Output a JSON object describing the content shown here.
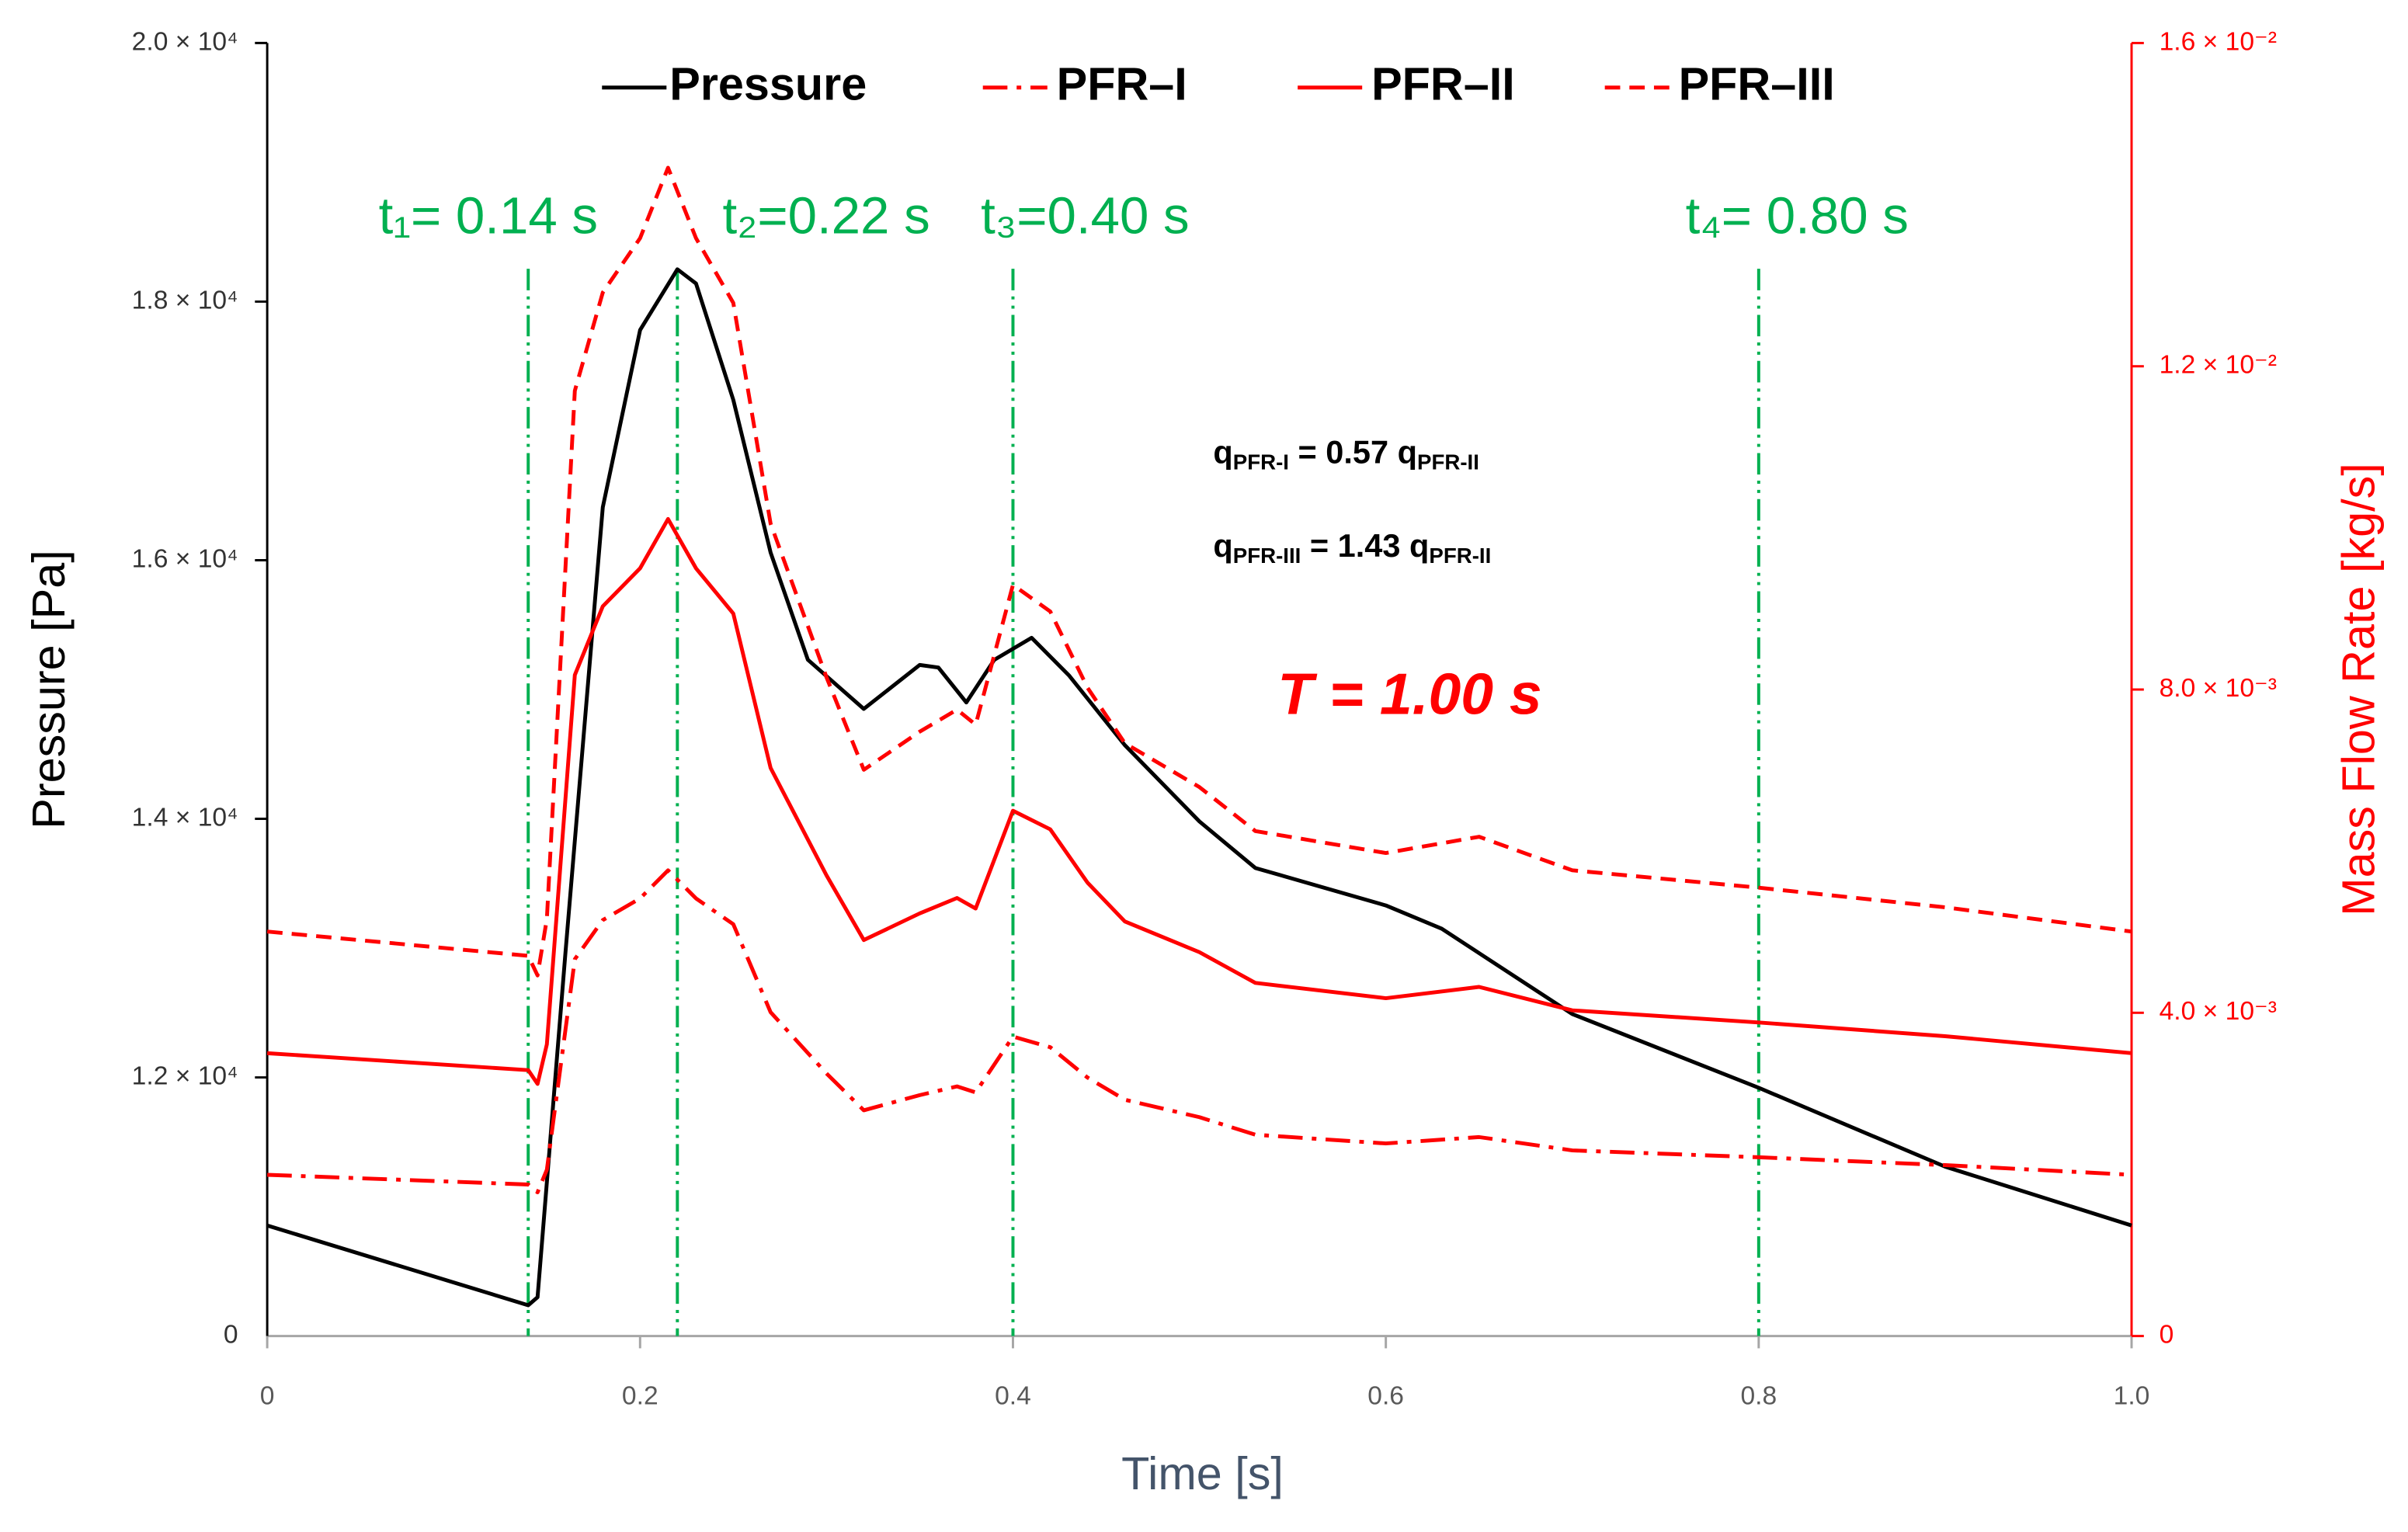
{
  "chart_data": {
    "type": "line",
    "xlabel": "Time [s]",
    "ylabel": "Pressure [Pa]",
    "y2label": "Mass Flow Rate [kg/s]",
    "xlim": [
      0,
      1
    ],
    "xticks": [
      0,
      0.2,
      0.4,
      0.6,
      0.8,
      {
        "value": 1,
        "label": "1.0"
      }
    ],
    "ylim": [
      10000,
      20000
    ],
    "y_origin_label": "0",
    "yticks": [
      {
        "value": 12000,
        "label": "1.2 × 10⁴"
      },
      {
        "value": 14000,
        "label": "1.4 × 10⁴"
      },
      {
        "value": 16000,
        "label": "1.6 × 10⁴"
      },
      {
        "value": 18000,
        "label": "1.8 × 10⁴"
      },
      {
        "value": 20000,
        "label": "2.0 × 10⁴"
      }
    ],
    "y2lim": [
      0,
      0.016
    ],
    "y2ticks": [
      0,
      {
        "value": 0.004,
        "label": "4.0 × 10⁻³"
      },
      {
        "value": 0.008,
        "label": "8.0 × 10⁻³"
      },
      {
        "value": 0.012,
        "label": "1.2 × 10⁻²"
      },
      {
        "value": 0.016,
        "label": "1.6 × 10⁻²"
      }
    ],
    "series": [
      {
        "name": "Pressure",
        "color": "#000000",
        "dash": "solid",
        "axis": "y",
        "x": [
          0,
          0.14,
          0.145,
          0.16,
          0.18,
          0.2,
          0.22,
          0.23,
          0.25,
          0.27,
          0.29,
          0.32,
          0.35,
          0.36,
          0.375,
          0.39,
          0.41,
          0.43,
          0.46,
          0.5,
          0.53,
          0.6,
          0.63,
          0.7,
          0.8,
          0.9,
          1.0
        ],
        "values": [
          10855,
          10238,
          10300,
          12970,
          16410,
          17780,
          18250,
          18140,
          17240,
          16060,
          15230,
          14850,
          15190,
          15170,
          14900,
          15230,
          15400,
          15110,
          14570,
          13980,
          13620,
          13330,
          13150,
          12490,
          11920,
          11310,
          10855
        ]
      },
      {
        "name": "PFR–I",
        "color": "#ff0000",
        "dash": "dashdot",
        "axis": "y2",
        "x": [
          0,
          0.14,
          0.145,
          0.15,
          0.165,
          0.18,
          0.2,
          0.215,
          0.23,
          0.25,
          0.27,
          0.3,
          0.32,
          0.35,
          0.37,
          0.38,
          0.4,
          0.42,
          0.44,
          0.46,
          0.5,
          0.53,
          0.6,
          0.65,
          0.7,
          0.8,
          0.9,
          1.0
        ],
        "values": [
          0.001995,
          0.001875,
          0.001778,
          0.002058,
          0.004663,
          0.005147,
          0.005415,
          0.005763,
          0.005415,
          0.005096,
          0.004007,
          0.003249,
          0.002793,
          0.002981,
          0.003089,
          0.003015,
          0.003705,
          0.003574,
          0.003198,
          0.002924,
          0.002708,
          0.002491,
          0.002383,
          0.002462,
          0.002297,
          0.002212,
          0.002115,
          0.001995
        ]
      },
      {
        "name": "PFR–II",
        "color": "#ff0000",
        "dash": "solid",
        "axis": "y2",
        "x": [
          0,
          0.14,
          0.145,
          0.15,
          0.165,
          0.18,
          0.2,
          0.215,
          0.23,
          0.25,
          0.27,
          0.3,
          0.32,
          0.35,
          0.37,
          0.38,
          0.4,
          0.42,
          0.44,
          0.46,
          0.5,
          0.53,
          0.6,
          0.65,
          0.7,
          0.8,
          0.9,
          1.0
        ],
        "values": [
          0.0035,
          0.00329,
          0.00312,
          0.00361,
          0.00818,
          0.00903,
          0.0095,
          0.01011,
          0.0095,
          0.00894,
          0.00703,
          0.0057,
          0.0049,
          0.00523,
          0.00542,
          0.00529,
          0.0065,
          0.00627,
          0.00561,
          0.00513,
          0.00475,
          0.00437,
          0.00418,
          0.00432,
          0.00403,
          0.00388,
          0.00371,
          0.0035
        ]
      },
      {
        "name": "PFR–III",
        "color": "#ff0000",
        "dash": "dashed",
        "axis": "y2",
        "x": [
          0,
          0.14,
          0.145,
          0.15,
          0.165,
          0.18,
          0.2,
          0.215,
          0.23,
          0.25,
          0.27,
          0.3,
          0.32,
          0.35,
          0.37,
          0.38,
          0.4,
          0.42,
          0.44,
          0.46,
          0.5,
          0.53,
          0.6,
          0.65,
          0.7,
          0.8,
          0.9,
          1.0
        ],
        "values": [
          0.005005,
          0.004705,
          0.004462,
          0.005162,
          0.011697,
          0.012913,
          0.013585,
          0.014457,
          0.013585,
          0.012784,
          0.010053,
          0.008151,
          0.007007,
          0.007479,
          0.007751,
          0.007565,
          0.009295,
          0.008966,
          0.008022,
          0.007336,
          0.006793,
          0.006249,
          0.005977,
          0.006178,
          0.005763,
          0.005548,
          0.005305,
          0.005005
        ]
      }
    ],
    "vlines": [
      {
        "x": 0.14,
        "label": "t₁= 0.14 s"
      },
      {
        "x": 0.22,
        "label": "t₂=0.22 s"
      },
      {
        "x": 0.4,
        "label": "t₃=0.40 s"
      },
      {
        "x": 0.8,
        "label": "t₄= 0.80 s"
      }
    ],
    "vline_color": "#00b050",
    "annotations": [
      {
        "parts": [
          "q",
          "PFR-I",
          " = 0.57 q",
          "PFR-II"
        ]
      },
      {
        "parts": [
          "q",
          "PFR-III",
          " = 1.43 q",
          "PFR-II"
        ]
      }
    ],
    "period_label": "T = 1.00 s",
    "period_color": "#ff0000",
    "legend": "top"
  }
}
